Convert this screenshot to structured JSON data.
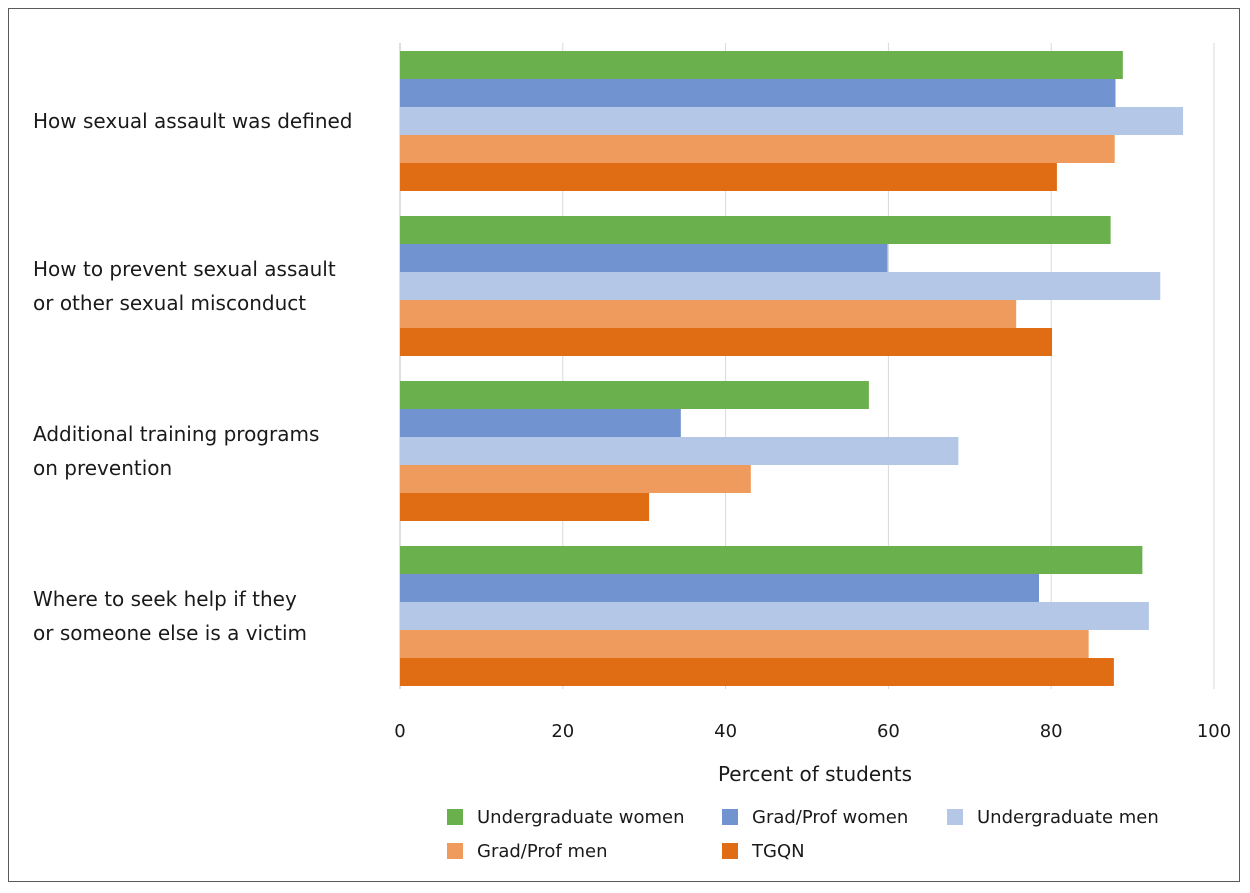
{
  "chart_data": {
    "type": "bar",
    "orientation": "horizontal",
    "categories": [
      "How sexual assault was defined",
      "How to prevent sexual assault or other sexual misconduct",
      "Additional training programs on prevention",
      "Where to seek help if they or someone else is a victim"
    ],
    "category_lines": [
      [
        "How sexual assault was defined"
      ],
      [
        "How to prevent sexual assault",
        "or other sexual misconduct"
      ],
      [
        "Additional training programs",
        "on prevention"
      ],
      [
        "Where to seek help if they",
        "or someone else is a victim"
      ]
    ],
    "series": [
      {
        "name": "Undergraduate women",
        "color": "#6ab04c",
        "values": [
          88.8,
          87.3,
          57.6,
          91.2
        ]
      },
      {
        "name": "Grad/Prof women",
        "color": "#7194d0",
        "values": [
          87.9,
          59.9,
          34.5,
          78.5
        ]
      },
      {
        "name": "Undergraduate men",
        "color": "#b4c7e7",
        "values": [
          96.2,
          93.4,
          68.6,
          92.0
        ]
      },
      {
        "name": "Grad/Prof men",
        "color": "#f09b5e",
        "values": [
          87.8,
          75.7,
          43.1,
          84.6
        ]
      },
      {
        "name": "TGQN",
        "color": "#e06c13",
        "values": [
          80.7,
          80.1,
          30.6,
          87.7
        ]
      }
    ],
    "xlabel": "Percent of students",
    "xlim": [
      0,
      100
    ],
    "xticks": [
      0,
      20,
      40,
      60,
      80,
      100
    ],
    "grid": true,
    "legend_position": "bottom"
  }
}
